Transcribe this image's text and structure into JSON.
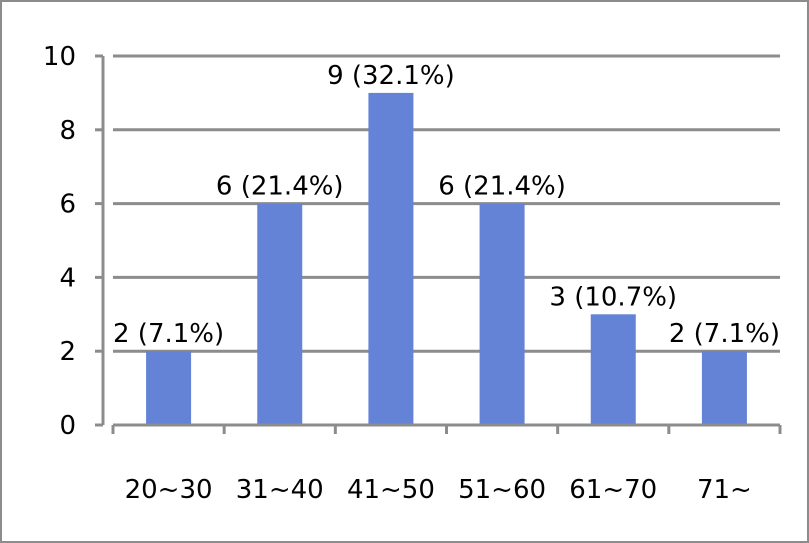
{
  "chart_data": {
    "type": "bar",
    "categories": [
      "20~30",
      "31~40",
      "41~50",
      "51~60",
      "61~70",
      "71~"
    ],
    "values": [
      2,
      6,
      9,
      6,
      3,
      2
    ],
    "data_labels": [
      "2 (7.1%)",
      "6 (21.4%)",
      "9 (32.1%)",
      "6 (21.4%)",
      "3 (10.7%)",
      "2 (7.1%)"
    ],
    "title": "",
    "xlabel": "",
    "ylabel": "",
    "ylim": [
      0,
      10
    ],
    "yticks": [
      0,
      2,
      4,
      6,
      8,
      10
    ],
    "grid": true,
    "legend": "none",
    "bar_color": "#6483d6",
    "grid_color": "#8c8c8c"
  }
}
